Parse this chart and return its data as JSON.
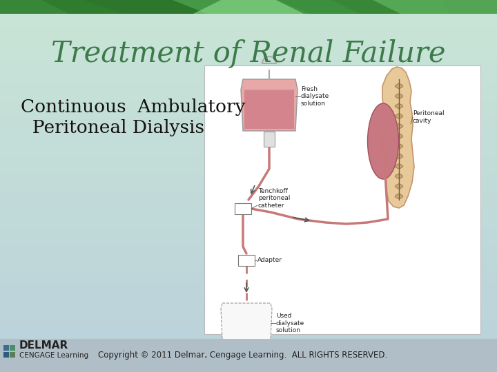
{
  "title": "Treatment of Renal Failure",
  "subtitle_line1": "Continuous  Ambulatory",
  "subtitle_line2": "  Peritoneal Dialysis",
  "copyright": "Copyright © 2011 Delmar, Cengage Learning.  ALL RIGHTS RESERVED.",
  "delmar_text": "DELMAR",
  "cengage_text": "CENGAGE Learning",
  "title_color": "#3d7a4a",
  "subtitle_color": "#111111",
  "title_fontsize": 30,
  "subtitle_fontsize": 19,
  "footer_fontsize": 8.5
}
